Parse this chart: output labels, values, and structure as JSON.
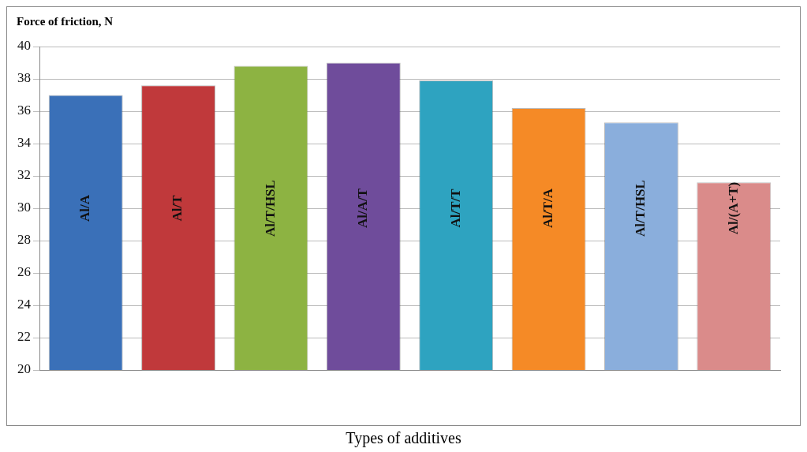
{
  "chart_data": {
    "type": "bar",
    "ylabel": "Force of friction, N",
    "xlabel": "Types of additives",
    "categories": [
      "Al/A",
      "Al/T",
      "Al/T/HSL",
      "Al/A/T",
      "Al/T/T",
      "Al/T/A",
      "Al/T/HSL",
      "Al/(A+T)"
    ],
    "values": [
      37.0,
      37.6,
      38.8,
      39.0,
      37.9,
      36.2,
      35.3,
      31.6
    ],
    "colors": [
      "#3a70b8",
      "#c0393b",
      "#8db342",
      "#6f4c9b",
      "#2ea3c0",
      "#f58a26",
      "#8aaedc",
      "#da8b8a"
    ],
    "ylim": [
      20,
      40
    ],
    "yticks": [
      20,
      22,
      24,
      26,
      28,
      30,
      32,
      34,
      36,
      38,
      40
    ],
    "grid": "y",
    "legend": false
  }
}
